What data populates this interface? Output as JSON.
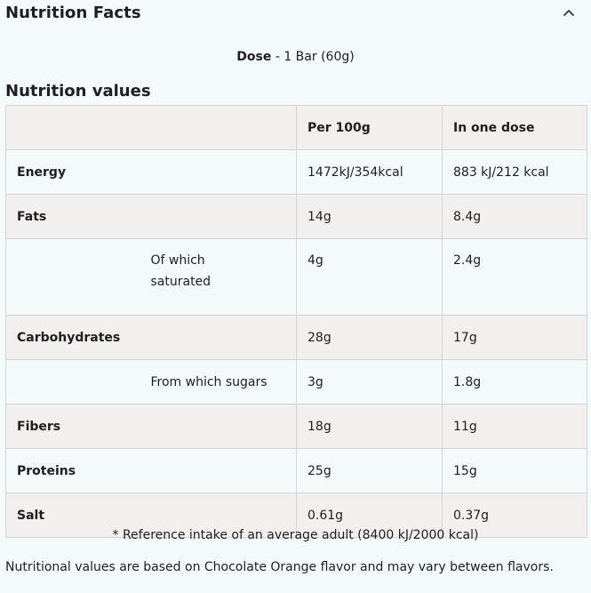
{
  "header": {
    "title": "Nutrition Facts",
    "toggle_icon": "chevron-up-icon"
  },
  "dose": {
    "label": "Dose",
    "value": " - 1 Bar (60g)"
  },
  "section_title": "Nutrition values",
  "table": {
    "columns": [
      "",
      "",
      "Per 100g",
      "In one dose"
    ],
    "rows": [
      {
        "name": "Energy",
        "sub": "",
        "per100": "1472kJ/354kcal",
        "dose": "883 kJ/212 kcal"
      },
      {
        "name": "Fats",
        "sub": "",
        "per100": "14g",
        "dose": "8.4g"
      },
      {
        "name": "",
        "sub_line1": "Of which",
        "sub_line2": "saturated",
        "per100": "4g",
        "dose": "2.4g"
      },
      {
        "name": "Carbohydrates",
        "sub": "",
        "per100": "28g",
        "dose": "17g"
      },
      {
        "name": "",
        "sub": "From which sugars",
        "per100": "3g",
        "dose": "1.8g"
      },
      {
        "name": "Fibers",
        "sub": "",
        "per100": "18g",
        "dose": "11g"
      },
      {
        "name": "Proteins",
        "sub": "",
        "per100": "25g",
        "dose": "15g"
      },
      {
        "name": "Salt",
        "sub": "",
        "per100": "0.61g",
        "dose": "0.37g"
      }
    ]
  },
  "footnote": "* Reference intake of an average adult (8400 kJ/2000 kcal)",
  "disclaimer": "Nutritional values are based on Chocolate Orange flavor and may vary between flavors.",
  "colors": {
    "background": "#f4f9f9",
    "row_shade": "#f2efef",
    "border": "#d4d4d4",
    "text": "#1f1f1f"
  }
}
